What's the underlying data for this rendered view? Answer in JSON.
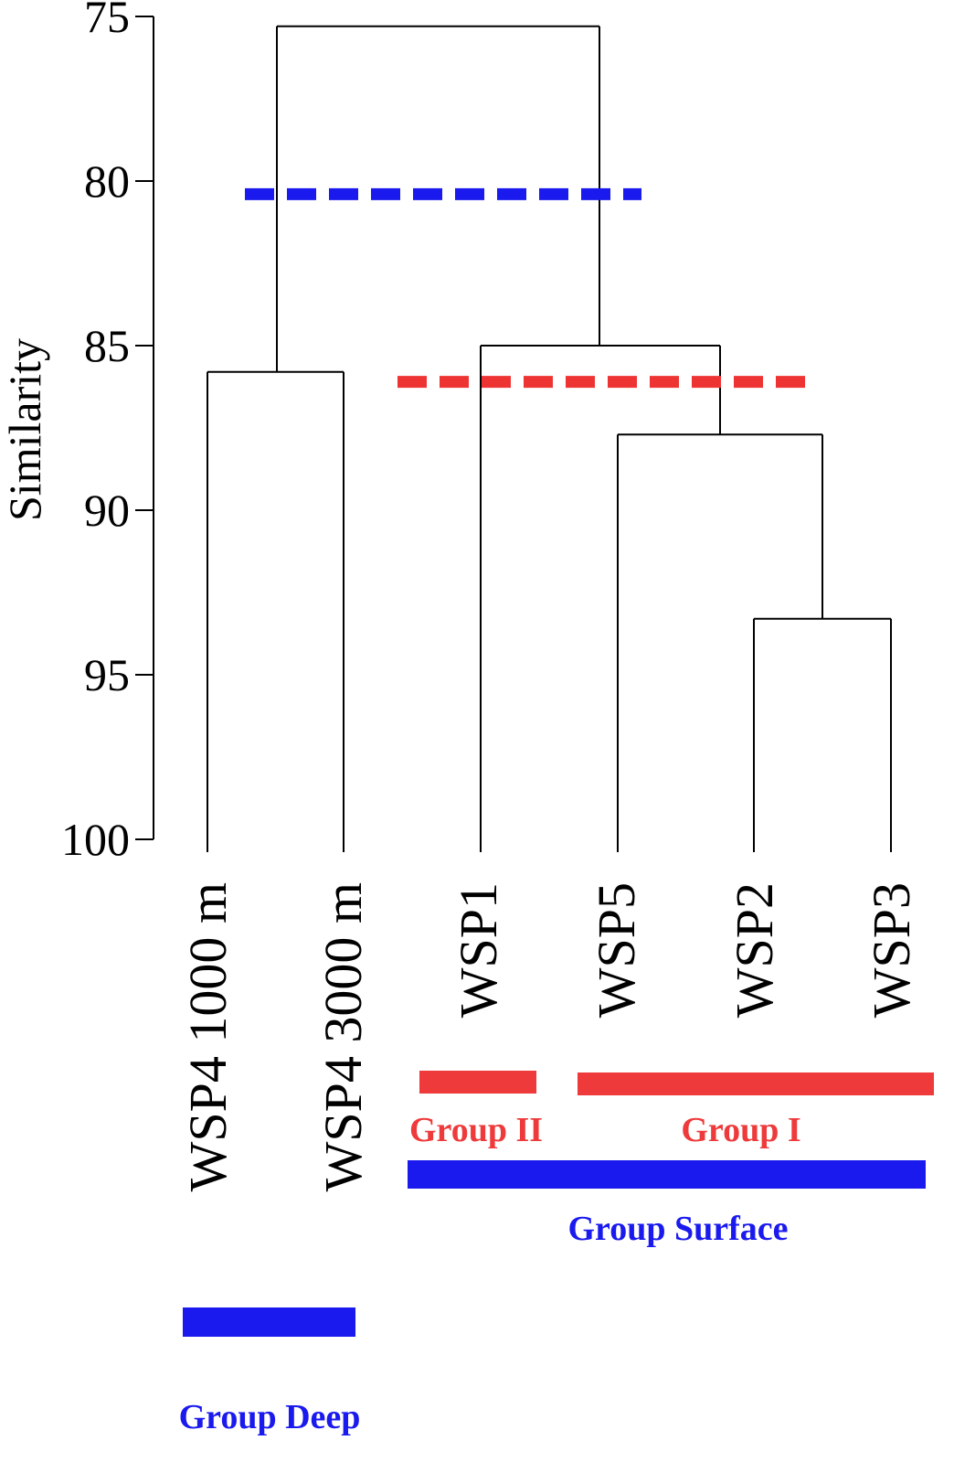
{
  "chart_data": {
    "type": "dendrogram",
    "ylabel": "Similarity",
    "ylim": [
      75,
      100
    ],
    "yticks": [
      75,
      80,
      85,
      90,
      95,
      100
    ],
    "leaves": [
      "WSP4 1000 m",
      "WSP4 3000 m",
      "WSP1",
      "WSP5",
      "WSP2",
      "WSP3"
    ],
    "merges": [
      {
        "left": "WSP2",
        "right": "WSP3",
        "similarity": 93.3
      },
      {
        "left": "WSP5",
        "right": "WSP2+WSP3",
        "similarity": 87.7
      },
      {
        "left": "WSP1",
        "right": "WSP5+WSP2+WSP3",
        "similarity": 85.0
      },
      {
        "left": "WSP4 1000 m",
        "right": "WSP4 3000 m",
        "similarity": 85.8
      },
      {
        "left": "Deep",
        "right": "Surface",
        "similarity": 75.3
      }
    ],
    "cutoff_lines": [
      {
        "similarity": 80.4,
        "color": "#1a1aee",
        "style": "dashed"
      },
      {
        "similarity": 86.1,
        "color": "#ee3333",
        "style": "dashed"
      }
    ],
    "groups": [
      {
        "label": "Group II",
        "color": "#ee3a3a",
        "members": [
          "WSP1"
        ]
      },
      {
        "label": "Group I",
        "color": "#ee3a3a",
        "members": [
          "WSP5",
          "WSP2",
          "WSP3"
        ]
      },
      {
        "label": "Group Surface",
        "color": "#1a1aee",
        "members": [
          "WSP1",
          "WSP5",
          "WSP2",
          "WSP3"
        ]
      },
      {
        "label": "Group Deep",
        "color": "#1a1aee",
        "members": [
          "WSP4 1000 m",
          "WSP4 3000 m"
        ]
      }
    ]
  }
}
